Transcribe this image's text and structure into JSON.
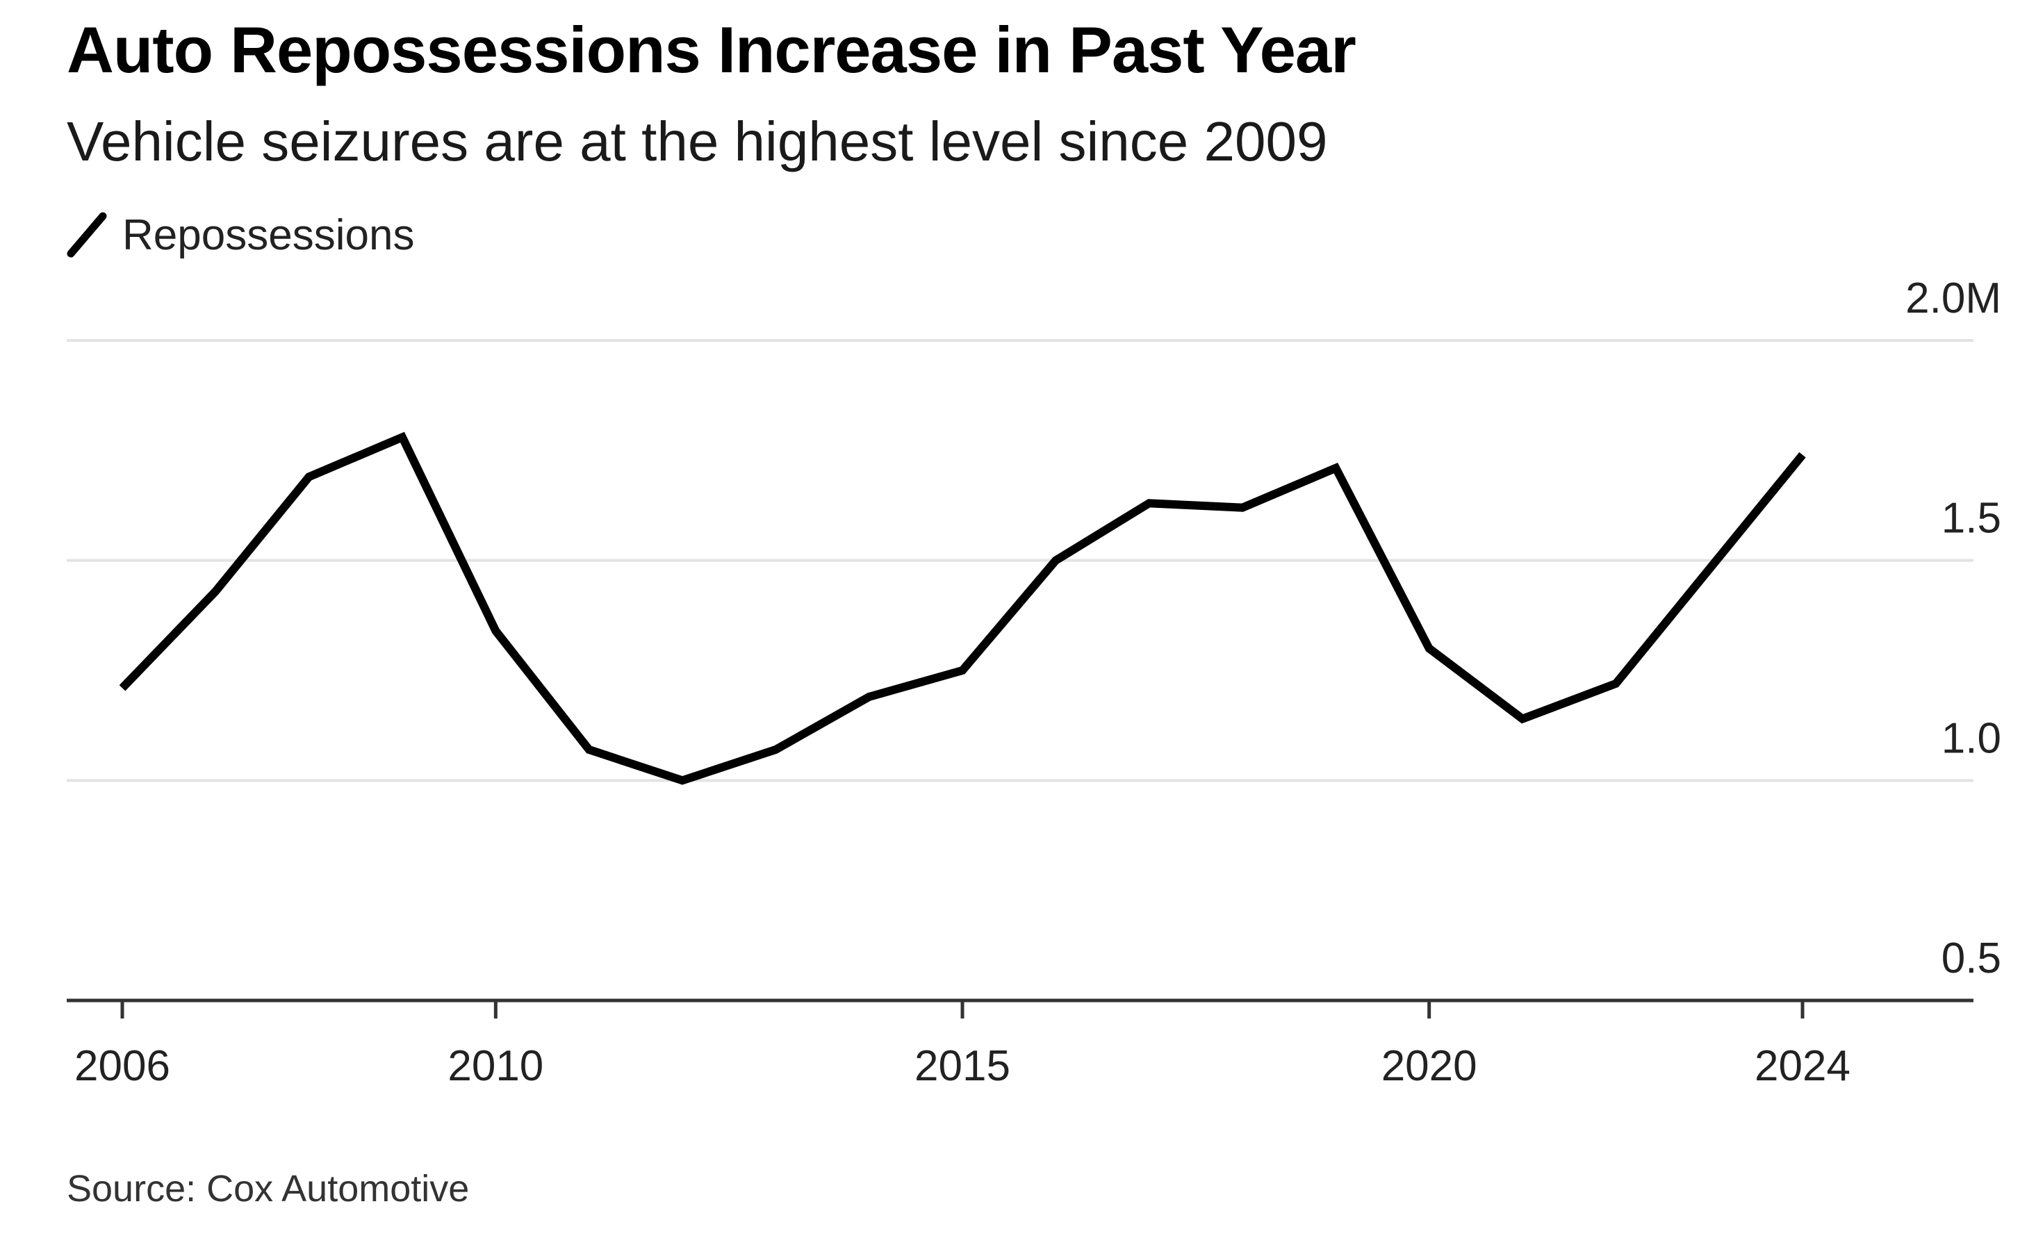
{
  "chart_data": {
    "type": "line",
    "title": "Auto Repossessions Increase in Past Year",
    "subtitle": "Vehicle seizures are at the highest level since 2009",
    "legend": [
      "Repossessions"
    ],
    "legend_position": "top-left",
    "source": "Source: Cox Automotive",
    "x": [
      2006,
      2007,
      2008,
      2009,
      2010,
      2011,
      2012,
      2013,
      2014,
      2015,
      2016,
      2017,
      2018,
      2019,
      2020,
      2021,
      2022,
      2023,
      2024
    ],
    "series": [
      {
        "name": "Repossessions",
        "color": "#000000",
        "values": [
          1.21,
          1.43,
          1.69,
          1.78,
          1.34,
          1.07,
          1.0,
          1.07,
          1.19,
          1.25,
          1.5,
          1.63,
          1.62,
          1.71,
          1.3,
          1.14,
          1.22,
          1.48,
          1.74
        ]
      }
    ],
    "x_ticks": [
      "2006",
      "2010",
      "2015",
      "2020",
      "2024"
    ],
    "y_ticks": [
      "2.0M",
      "1.5",
      "1.0",
      "0.5"
    ],
    "xlim": [
      2006,
      2024
    ],
    "ylim": [
      0.5,
      2.0
    ],
    "y_axis_side": "right",
    "grid": true
  }
}
